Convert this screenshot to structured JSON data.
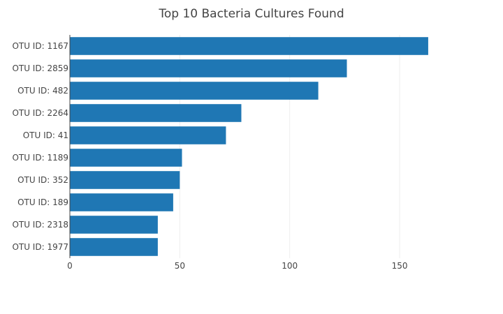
{
  "chart_data": {
    "type": "bar",
    "orientation": "horizontal",
    "title": "Top 10 Bacteria Cultures Found",
    "xlabel": "",
    "ylabel": "",
    "categories": [
      "OTU ID: 1167",
      "OTU ID: 2859",
      "OTU ID: 482",
      "OTU ID: 2264",
      "OTU ID: 41",
      "OTU ID: 1189",
      "OTU ID: 352",
      "OTU ID: 189",
      "OTU ID: 2318",
      "OTU ID: 1977"
    ],
    "values": [
      163,
      126,
      113,
      78,
      71,
      51,
      50,
      47,
      40,
      40
    ],
    "xlim": [
      0,
      171.6
    ],
    "xticks": [
      0,
      50,
      100,
      150
    ],
    "grid": true,
    "legend": "none",
    "bar_color": "#1f77b4"
  }
}
